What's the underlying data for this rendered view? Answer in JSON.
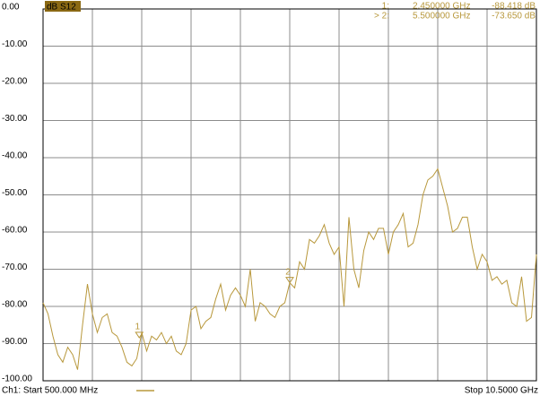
{
  "chart_data": {
    "type": "line",
    "trace_label": "dB S12",
    "start_label": "Ch1: Start 500.000 MHz",
    "stop_label": "Stop 10.5000 GHz",
    "xlim": [
      0.5,
      10.5
    ],
    "xticks": [
      0.5,
      1.5,
      2.5,
      3.5,
      4.5,
      5.5,
      6.5,
      7.5,
      8.5,
      9.5,
      10.5
    ],
    "ylim": [
      -100,
      0
    ],
    "yticks": [
      {
        "value": 0,
        "label": "0.00"
      },
      {
        "value": -10,
        "label": "-10.00"
      },
      {
        "value": -20,
        "label": "-20.00"
      },
      {
        "value": -30,
        "label": "-30.00"
      },
      {
        "value": -40,
        "label": "-40.00"
      },
      {
        "value": -50,
        "label": "-50.00"
      },
      {
        "value": -60,
        "label": "-60.00"
      },
      {
        "value": -70,
        "label": "-70.00"
      },
      {
        "value": -80,
        "label": "-80.00"
      },
      {
        "value": -90,
        "label": "-90.00"
      },
      {
        "value": -100,
        "label": "-100.00"
      }
    ],
    "grid": true,
    "x": [
      0.5,
      0.6,
      0.7,
      0.8,
      0.9,
      1.0,
      1.1,
      1.2,
      1.3,
      1.4,
      1.5,
      1.6,
      1.7,
      1.8,
      1.9,
      2.0,
      2.1,
      2.2,
      2.3,
      2.4,
      2.5,
      2.6,
      2.7,
      2.8,
      2.9,
      3.0,
      3.1,
      3.2,
      3.3,
      3.4,
      3.5,
      3.6,
      3.7,
      3.8,
      3.9,
      4.0,
      4.1,
      4.2,
      4.3,
      4.4,
      4.5,
      4.6,
      4.7,
      4.8,
      4.9,
      5.0,
      5.1,
      5.2,
      5.3,
      5.4,
      5.5,
      5.6,
      5.7,
      5.8,
      5.9,
      6.0,
      6.1,
      6.2,
      6.3,
      6.4,
      6.5,
      6.6,
      6.7,
      6.8,
      6.9,
      7.0,
      7.1,
      7.2,
      7.3,
      7.4,
      7.5,
      7.6,
      7.7,
      7.8,
      7.9,
      8.0,
      8.1,
      8.2,
      8.3,
      8.4,
      8.5,
      8.6,
      8.7,
      8.8,
      8.9,
      9.0,
      9.1,
      9.2,
      9.3,
      9.4,
      9.5,
      9.6,
      9.7,
      9.8,
      9.9,
      10.0,
      10.1,
      10.2,
      10.3,
      10.4,
      10.5
    ],
    "series": [
      {
        "color": "#b8983c",
        "values": [
          -79,
          -82,
          -88,
          -93,
          -95,
          -91,
          -93,
          -97,
          -85,
          -74,
          -82,
          -87,
          -83,
          -82,
          -87,
          -88,
          -91,
          -95,
          -96,
          -94,
          -87,
          -92,
          -88,
          -89,
          -87,
          -90,
          -88,
          -92,
          -93,
          -90,
          -81,
          -80,
          -86,
          -84,
          -83,
          -78,
          -74,
          -81,
          -77,
          -75,
          -77,
          -80,
          -70,
          -84,
          -79,
          -80,
          -82,
          -83,
          -80,
          -79,
          -73.65,
          -75,
          -68,
          -70,
          -62,
          -63,
          -61,
          -58,
          -63,
          -66,
          -64,
          -80,
          -56,
          -70,
          -75,
          -65,
          -60,
          -62,
          -59,
          -59,
          -66,
          -60,
          -58,
          -55,
          -64,
          -63,
          -58,
          -50,
          -46,
          -45,
          -43,
          -48,
          -53,
          -60,
          -59,
          -56,
          -56,
          -64,
          -70,
          -66,
          -68,
          -73,
          -72,
          -74,
          -73,
          -79,
          -80,
          -72,
          -84,
          -83,
          -66
        ]
      }
    ],
    "markers": [
      {
        "name": "1",
        "readout": "1:",
        "x": 2.45,
        "x_label": "2.450000 GHz",
        "y": -88.418,
        "y_label": "-88.418 dB"
      },
      {
        "name": "2",
        "readout": "> 2:",
        "x": 5.5,
        "x_label": "5.500000 GHz",
        "y": -73.65,
        "y_label": "-73.650 dB"
      }
    ]
  }
}
